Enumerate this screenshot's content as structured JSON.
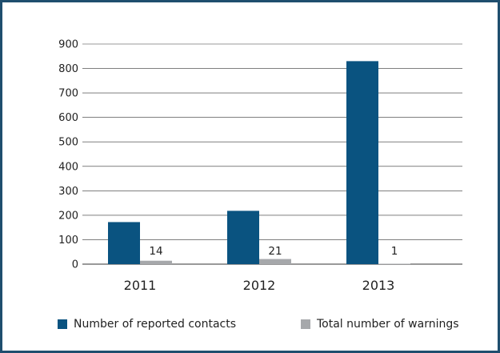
{
  "chart_data": {
    "type": "bar",
    "categories": [
      "2011",
      "2012",
      "2013"
    ],
    "series": [
      {
        "name": "Number of reported contacts",
        "values": [
          172,
          218,
          830
        ],
        "color": "#0a5380"
      },
      {
        "name": "Total number of warnings",
        "values": [
          14,
          21,
          1
        ],
        "color": "#a6a8ab",
        "labels": [
          "14",
          "21",
          "1"
        ]
      }
    ],
    "ylim": [
      0,
      900
    ],
    "yticks": [
      "0",
      "100",
      "200",
      "300",
      "400",
      "500",
      "600",
      "700",
      "800",
      "900"
    ],
    "grid": true,
    "legend_position": "bottom"
  },
  "frame_color": "#1f4e6e",
  "grid_color": "#333333"
}
